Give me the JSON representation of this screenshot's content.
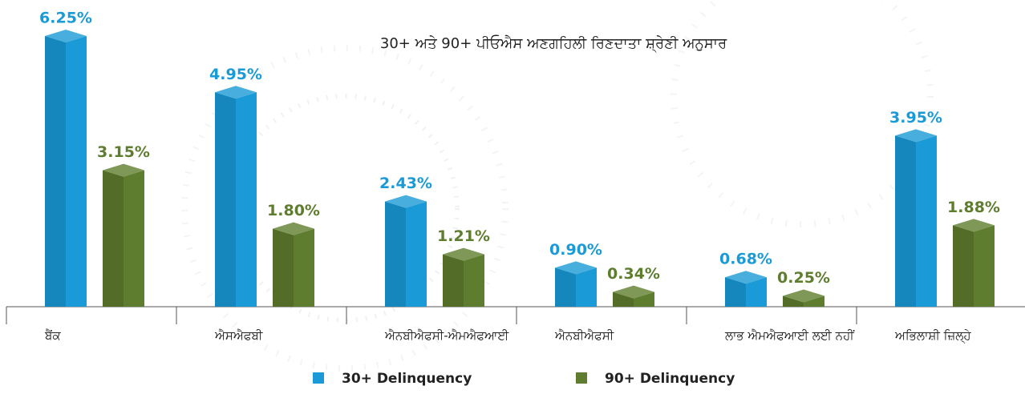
{
  "chart_data": {
    "type": "bar3d",
    "title": "30+ ਅਤੇ 90+ ਪੀਓਐਸ ਅਣਗਹਿਲੀ ਰਿਣਦਾਤਾ ਸ਼੍ਰੇਣੀ ਅਨੁਸਾਰ",
    "categories": [
      "ਬੈਂਕ",
      "ਐਸਐਫਬੀ",
      "ਐਨਬੀਐਫਸੀ-ਐਮਐਫਆਈ",
      "ਐਨਬੀਐਫਸੀ",
      "ਲਾਭ ਐਮਐਫਆਈ ਲਈ ਨਹੀਂ",
      "ਅਭਿਲਾਸ਼ੀ ਜ਼ਿਲ੍ਹੇ"
    ],
    "series": [
      {
        "name": "30+ Delinquency",
        "color": "#1a9ad6",
        "values": [
          6.25,
          4.95,
          2.43,
          0.9,
          0.68,
          3.95
        ],
        "value_labels": [
          "6.25%",
          "4.95%",
          "2.43%",
          "0.90%",
          "0.68%",
          "3.95%"
        ]
      },
      {
        "name": "90+ Delinquency",
        "color": "#5f7d2e",
        "values": [
          3.15,
          1.8,
          1.21,
          0.34,
          0.25,
          1.88
        ],
        "value_labels": [
          "3.15%",
          "1.80%",
          "1.21%",
          "0.34%",
          "0.25%",
          "1.88%"
        ]
      }
    ]
  }
}
